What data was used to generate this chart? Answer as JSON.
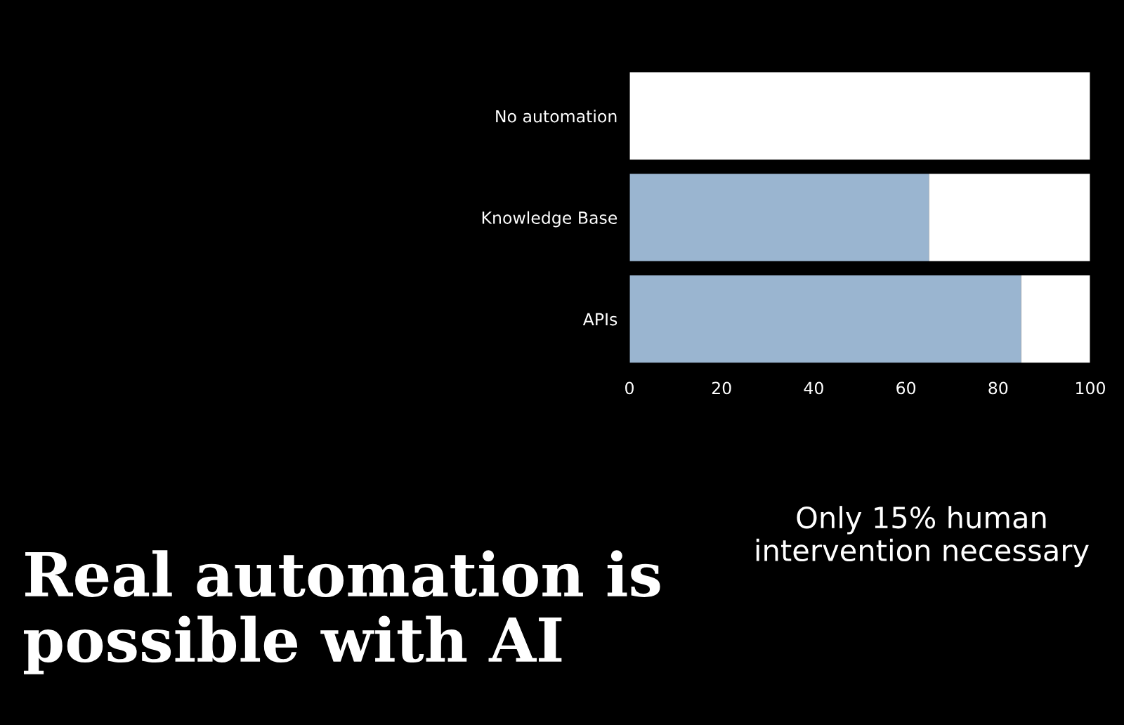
{
  "chart_data": {
    "type": "bar",
    "orientation": "horizontal",
    "stacked": true,
    "title": "Real automation is possible with AI",
    "categories": [
      "No automation",
      "Knowledge Base",
      "APIs"
    ],
    "series": [
      {
        "color": "#9ab5d0",
        "values": [
          0,
          65,
          85
        ]
      },
      {
        "color": "#ffffff",
        "values": [
          100,
          35,
          15
        ]
      }
    ],
    "xlim": [
      0,
      100
    ],
    "xticks": [
      0,
      20,
      40,
      60,
      80,
      100
    ],
    "grid": false,
    "legend": false,
    "annotations": [
      "Only 15% human intervention necessary"
    ]
  }
}
